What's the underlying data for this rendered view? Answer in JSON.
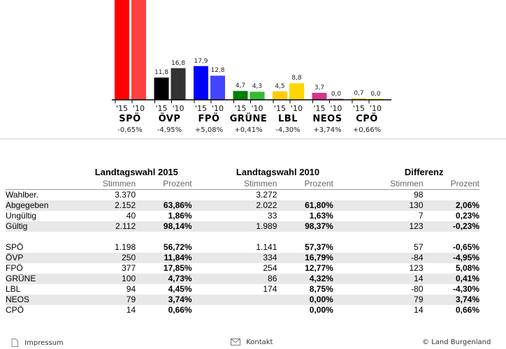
{
  "chart_data": {
    "type": "bar",
    "categories": [
      "SPÖ",
      "ÖVP",
      "FPÖ",
      "GRÜNE",
      "LBL",
      "NEOS",
      "CPÖ"
    ],
    "year_labels": [
      "'15",
      "'10"
    ],
    "series": [
      {
        "name": "'15",
        "values": [
          56.72,
          11.8,
          17.9,
          4.7,
          4.5,
          3.7,
          0.7
        ]
      },
      {
        "name": "'10",
        "values": [
          57.37,
          16.8,
          12.8,
          4.3,
          8.8,
          0.0,
          0.0
        ]
      }
    ],
    "value_labels_15": [
      "",
      "11,8",
      "17,9",
      "4,7",
      "4,5",
      "3,7",
      "0,7"
    ],
    "value_labels_10": [
      "",
      "16,8",
      "12,8",
      "4,3",
      "8,8",
      "0,0",
      "0,0"
    ],
    "differences": [
      "-0,65%",
      "-4,95%",
      "+5,08%",
      "+0,41%",
      "-4,30%",
      "+3,74%",
      "+0,66%"
    ],
    "colors_15": [
      "#ff0000",
      "#000000",
      "#0000ff",
      "#008000",
      "#ffcc00",
      "#d6338c",
      "#e8c000"
    ],
    "colors_10": [
      "#ff4040",
      "#333333",
      "#4444ff",
      "#33bb33",
      "#ffd600",
      "#d6338c",
      "#ffd600"
    ],
    "ylim": [
      0,
      60
    ]
  },
  "table": {
    "groups": [
      "Landtagswahl 2015",
      "Landtagswahl 2010",
      "Differenz"
    ],
    "sub_stimmen": "Stimmen",
    "sub_prozent": "Prozent",
    "summary_rows": [
      {
        "label": "Wahlber.",
        "s15": "3.370",
        "p15": "",
        "s10": "3.272",
        "p10": "",
        "sd": "98",
        "pd": ""
      },
      {
        "label": "Abgegeben",
        "s15": "2.152",
        "p15": "63,86%",
        "s10": "2.022",
        "p10": "61,80%",
        "sd": "130",
        "pd": "2,06%"
      },
      {
        "label": "Ungültig",
        "s15": "40",
        "p15": "1,86%",
        "s10": "33",
        "p10": "1,63%",
        "sd": "7",
        "pd": "0,23%"
      },
      {
        "label": "Gültig",
        "s15": "2.112",
        "p15": "98,14%",
        "s10": "1.989",
        "p10": "98,37%",
        "sd": "123",
        "pd": "-0,23%"
      }
    ],
    "party_rows": [
      {
        "label": "SPÖ",
        "s15": "1.198",
        "p15": "56,72%",
        "s10": "1.141",
        "p10": "57,37%",
        "sd": "57",
        "pd": "-0,65%"
      },
      {
        "label": "ÖVP",
        "s15": "250",
        "p15": "11,84%",
        "s10": "334",
        "p10": "16,79%",
        "sd": "-84",
        "pd": "-4,95%"
      },
      {
        "label": "FPÖ",
        "s15": "377",
        "p15": "17,85%",
        "s10": "254",
        "p10": "12,77%",
        "sd": "123",
        "pd": "5,08%"
      },
      {
        "label": "GRÜNE",
        "s15": "100",
        "p15": "4,73%",
        "s10": "86",
        "p10": "4,32%",
        "sd": "14",
        "pd": "0,41%"
      },
      {
        "label": "LBL",
        "s15": "94",
        "p15": "4,45%",
        "s10": "174",
        "p10": "8,75%",
        "sd": "-80",
        "pd": "-4,30%"
      },
      {
        "label": "NEOS",
        "s15": "79",
        "p15": "3,74%",
        "s10": "",
        "p10": "0,00%",
        "sd": "79",
        "pd": "3,74%"
      },
      {
        "label": "CPÖ",
        "s15": "14",
        "p15": "0,66%",
        "s10": "",
        "p10": "0,00%",
        "sd": "14",
        "pd": "0,66%"
      }
    ]
  },
  "footer": {
    "impressum": "Impressum",
    "kontakt": "Kontakt",
    "copyright": "© Land Burgenland"
  },
  "icons": [
    "document-icon",
    "mail-icon"
  ]
}
